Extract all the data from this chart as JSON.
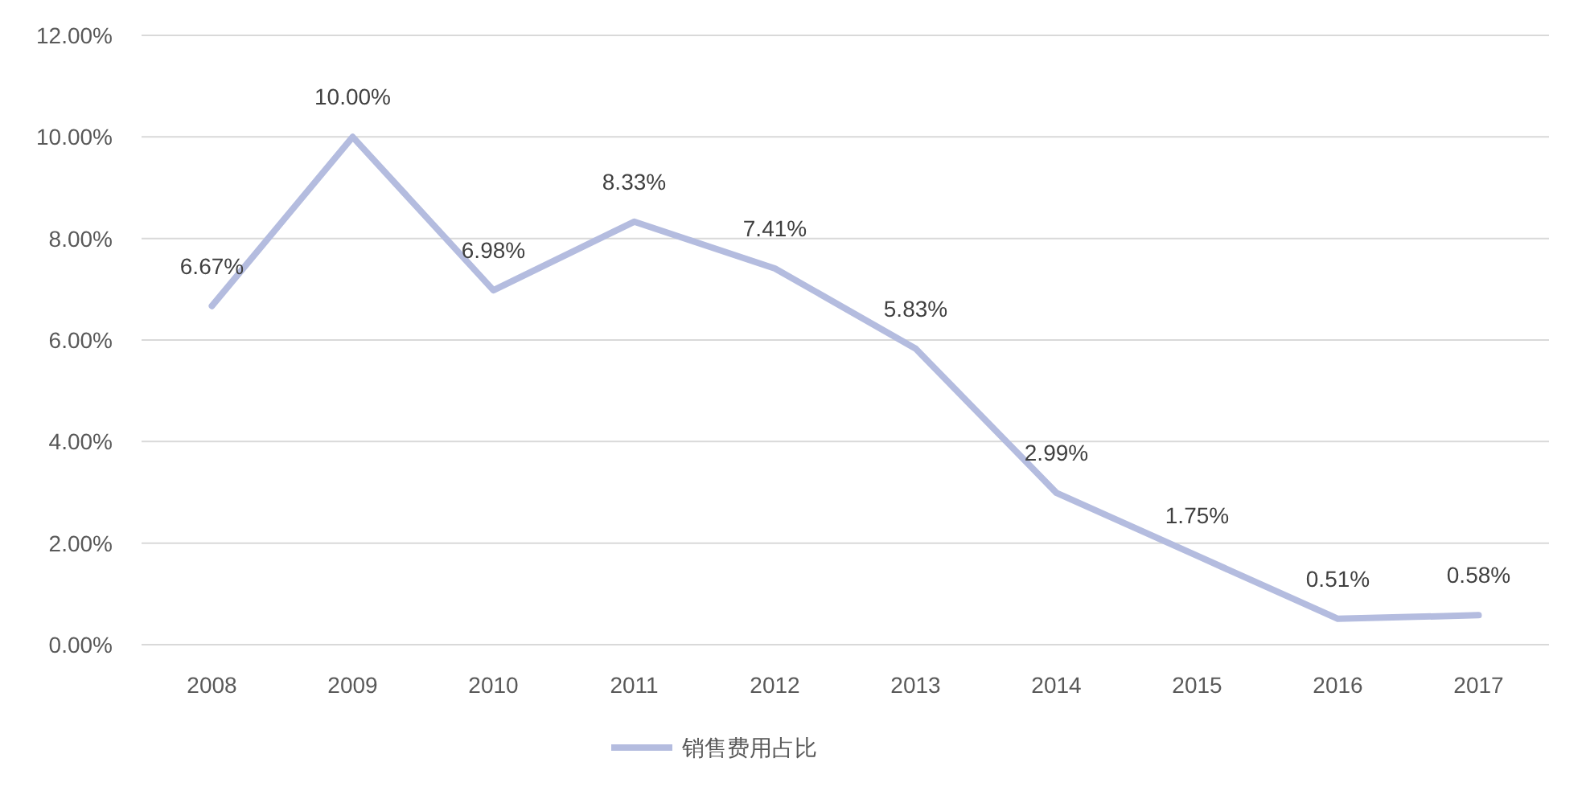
{
  "chart_data": {
    "type": "line",
    "categories": [
      "2008",
      "2009",
      "2010",
      "2011",
      "2012",
      "2013",
      "2014",
      "2015",
      "2016",
      "2017"
    ],
    "series": [
      {
        "name": "销售费用占比",
        "color": "#b4bcdf",
        "values": [
          6.67,
          10.0,
          6.98,
          8.33,
          7.41,
          5.83,
          2.99,
          1.75,
          0.51,
          0.58
        ],
        "value_labels": [
          "6.67%",
          "10.00%",
          "6.98%",
          "8.33%",
          "7.41%",
          "5.83%",
          "2.99%",
          "1.75%",
          "0.51%",
          "0.58%"
        ]
      }
    ],
    "ylim": [
      0,
      12
    ],
    "yticks": [
      {
        "value": 0,
        "label": "0.00%"
      },
      {
        "value": 2,
        "label": "2.00%"
      },
      {
        "value": 4,
        "label": "4.00%"
      },
      {
        "value": 6,
        "label": "6.00%"
      },
      {
        "value": 8,
        "label": "8.00%"
      },
      {
        "value": 10,
        "label": "10.00%"
      },
      {
        "value": 12,
        "label": "12.00%"
      }
    ],
    "grid": "y",
    "legend": "bottom",
    "marker": "none",
    "line_style": "solid"
  }
}
